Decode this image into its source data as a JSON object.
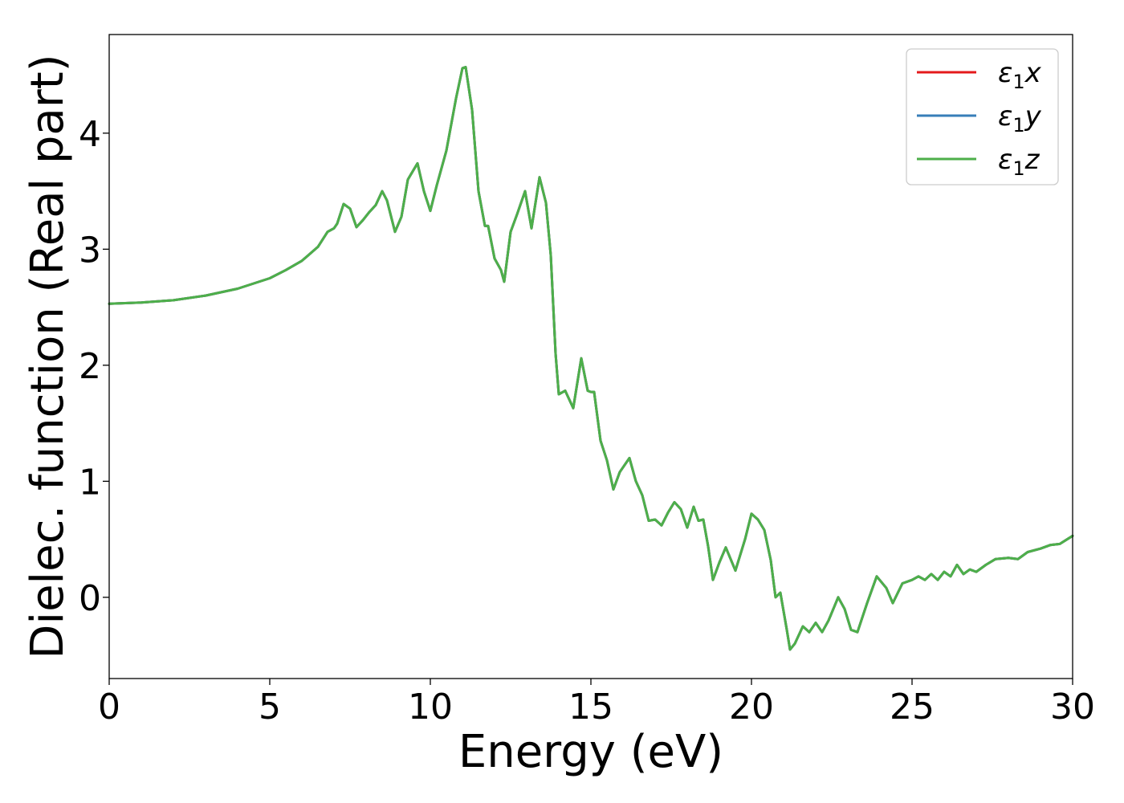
{
  "chart_data": {
    "type": "line",
    "xlabel": "Energy (eV)",
    "ylabel": "Dielec. function (Real part)",
    "xlim": [
      0,
      30
    ],
    "ylim": [
      -0.7,
      4.85
    ],
    "xticks": [
      0,
      5,
      10,
      15,
      20,
      25,
      30
    ],
    "xtick_labels": [
      "0",
      "5",
      "10",
      "15",
      "20",
      "25",
      "30"
    ],
    "yticks": [
      0,
      1,
      2,
      3,
      4
    ],
    "ytick_labels": [
      "0",
      "1",
      "2",
      "3",
      "4"
    ],
    "grid": false,
    "legend_position": "top-right",
    "legend": [
      {
        "base": "ε",
        "sub": "1",
        "suffix": "x",
        "color": "#e41a1c"
      },
      {
        "base": "ε",
        "sub": "1",
        "suffix": "y",
        "color": "#377eb8"
      },
      {
        "base": "ε",
        "sub": "1",
        "suffix": "z",
        "color": "#4daf4a"
      }
    ],
    "x": [
      0,
      1,
      2,
      3,
      4,
      5,
      5.5,
      6,
      6.5,
      6.8,
      7.0,
      7.1,
      7.3,
      7.5,
      7.7,
      7.9,
      8.1,
      8.3,
      8.5,
      8.65,
      8.9,
      9.1,
      9.3,
      9.6,
      9.8,
      10.0,
      10.2,
      10.5,
      10.8,
      11.0,
      11.1,
      11.3,
      11.5,
      11.7,
      11.8,
      12.0,
      12.2,
      12.3,
      12.5,
      12.7,
      12.95,
      13.15,
      13.4,
      13.6,
      13.75,
      13.9,
      14.0,
      14.2,
      14.45,
      14.7,
      14.9,
      15.0,
      15.1,
      15.3,
      15.5,
      15.7,
      15.9,
      16.2,
      16.4,
      16.6,
      16.8,
      17.0,
      17.2,
      17.4,
      17.6,
      17.8,
      18.0,
      18.2,
      18.35,
      18.5,
      18.65,
      18.8,
      19.0,
      19.2,
      19.5,
      19.8,
      20.0,
      20.2,
      20.4,
      20.6,
      20.75,
      20.9,
      21.1,
      21.2,
      21.35,
      21.6,
      21.8,
      22.0,
      22.2,
      22.4,
      22.7,
      22.9,
      23.1,
      23.3,
      23.6,
      23.9,
      24.2,
      24.4,
      24.7,
      25.0,
      25.2,
      25.4,
      25.6,
      25.8,
      26.0,
      26.2,
      26.4,
      26.6,
      26.8,
      27.0,
      27.3,
      27.6,
      28.0,
      28.3,
      28.6,
      29.0,
      29.3,
      29.6,
      30.0
    ],
    "series": [
      {
        "name": "ε1x",
        "color": "#e41a1c"
      },
      {
        "name": "ε1y",
        "color": "#377eb8"
      },
      {
        "name": "ε1z",
        "color": "#4daf4a"
      }
    ],
    "values": [
      2.53,
      2.54,
      2.56,
      2.6,
      2.66,
      2.75,
      2.82,
      2.9,
      3.02,
      3.15,
      3.18,
      3.22,
      3.39,
      3.35,
      3.19,
      3.25,
      3.32,
      3.38,
      3.5,
      3.42,
      3.15,
      3.28,
      3.6,
      3.74,
      3.5,
      3.33,
      3.55,
      3.85,
      4.3,
      4.56,
      4.57,
      4.2,
      3.5,
      3.2,
      3.2,
      2.92,
      2.82,
      2.72,
      3.15,
      3.3,
      3.5,
      3.18,
      3.62,
      3.4,
      2.95,
      2.1,
      1.75,
      1.78,
      1.63,
      2.06,
      1.78,
      1.77,
      1.77,
      1.35,
      1.18,
      0.93,
      1.08,
      1.2,
      1.0,
      0.88,
      0.66,
      0.67,
      0.62,
      0.73,
      0.82,
      0.76,
      0.6,
      0.78,
      0.66,
      0.67,
      0.44,
      0.15,
      0.3,
      0.43,
      0.23,
      0.5,
      0.72,
      0.67,
      0.58,
      0.32,
      0.0,
      0.04,
      -0.28,
      -0.45,
      -0.4,
      -0.25,
      -0.3,
      -0.22,
      -0.3,
      -0.2,
      0.0,
      -0.1,
      -0.28,
      -0.3,
      -0.05,
      0.18,
      0.08,
      -0.05,
      0.12,
      0.15,
      0.18,
      0.15,
      0.2,
      0.15,
      0.22,
      0.18,
      0.28,
      0.2,
      0.24,
      0.22,
      0.28,
      0.33,
      0.34,
      0.33,
      0.39,
      0.42,
      0.45,
      0.46,
      0.53
    ]
  }
}
